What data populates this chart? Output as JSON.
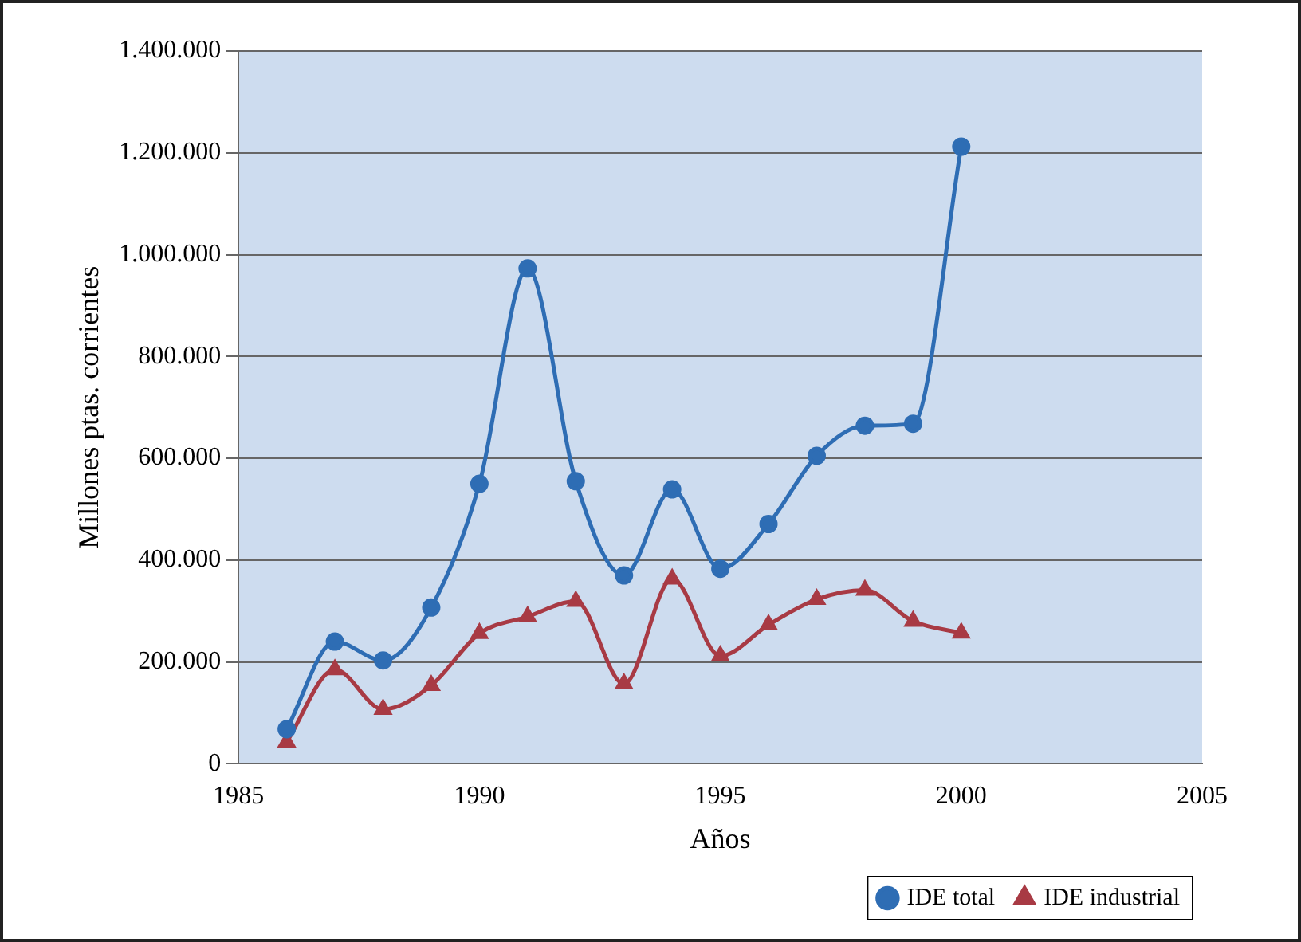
{
  "chart_data": {
    "type": "line",
    "xlabel": "Años",
    "ylabel": "Millones ptas. corrientes",
    "x": [
      1986,
      1987,
      1988,
      1989,
      1990,
      1991,
      1992,
      1993,
      1994,
      1995,
      1996,
      1997,
      1998,
      1999,
      2000
    ],
    "series": [
      {
        "name": "IDE total",
        "color": "#2e6db4",
        "marker": "circle",
        "values": [
          68000,
          240000,
          203000,
          307000,
          550000,
          973000,
          555000,
          370000,
          539000,
          383000,
          471000,
          605000,
          664000,
          668000,
          1212000
        ]
      },
      {
        "name": "IDE industrial",
        "color": "#a83a44",
        "marker": "triangle",
        "values": [
          43000,
          185000,
          107000,
          154000,
          256000,
          289000,
          319000,
          157000,
          363000,
          212000,
          273000,
          323000,
          341000,
          280000,
          257000
        ]
      }
    ],
    "xlim": [
      1985,
      2005
    ],
    "xticks": [
      1985,
      1990,
      1995,
      2000,
      2005
    ],
    "ylim": [
      0,
      1400000
    ],
    "yticks": [
      0,
      {
        "value": 200000,
        "label": "200.000"
      },
      {
        "value": 400000,
        "label": "400.000"
      },
      {
        "value": 600000,
        "label": "600.000"
      },
      {
        "value": 800000,
        "label": "800.000"
      },
      {
        "value": 1000000,
        "label": "1.000.000"
      },
      {
        "value": 1200000,
        "label": "1.200.000"
      },
      {
        "value": 1400000,
        "label": "1.400.000"
      }
    ],
    "grid": "y",
    "legend": "bottom right",
    "line_style": "solid"
  }
}
